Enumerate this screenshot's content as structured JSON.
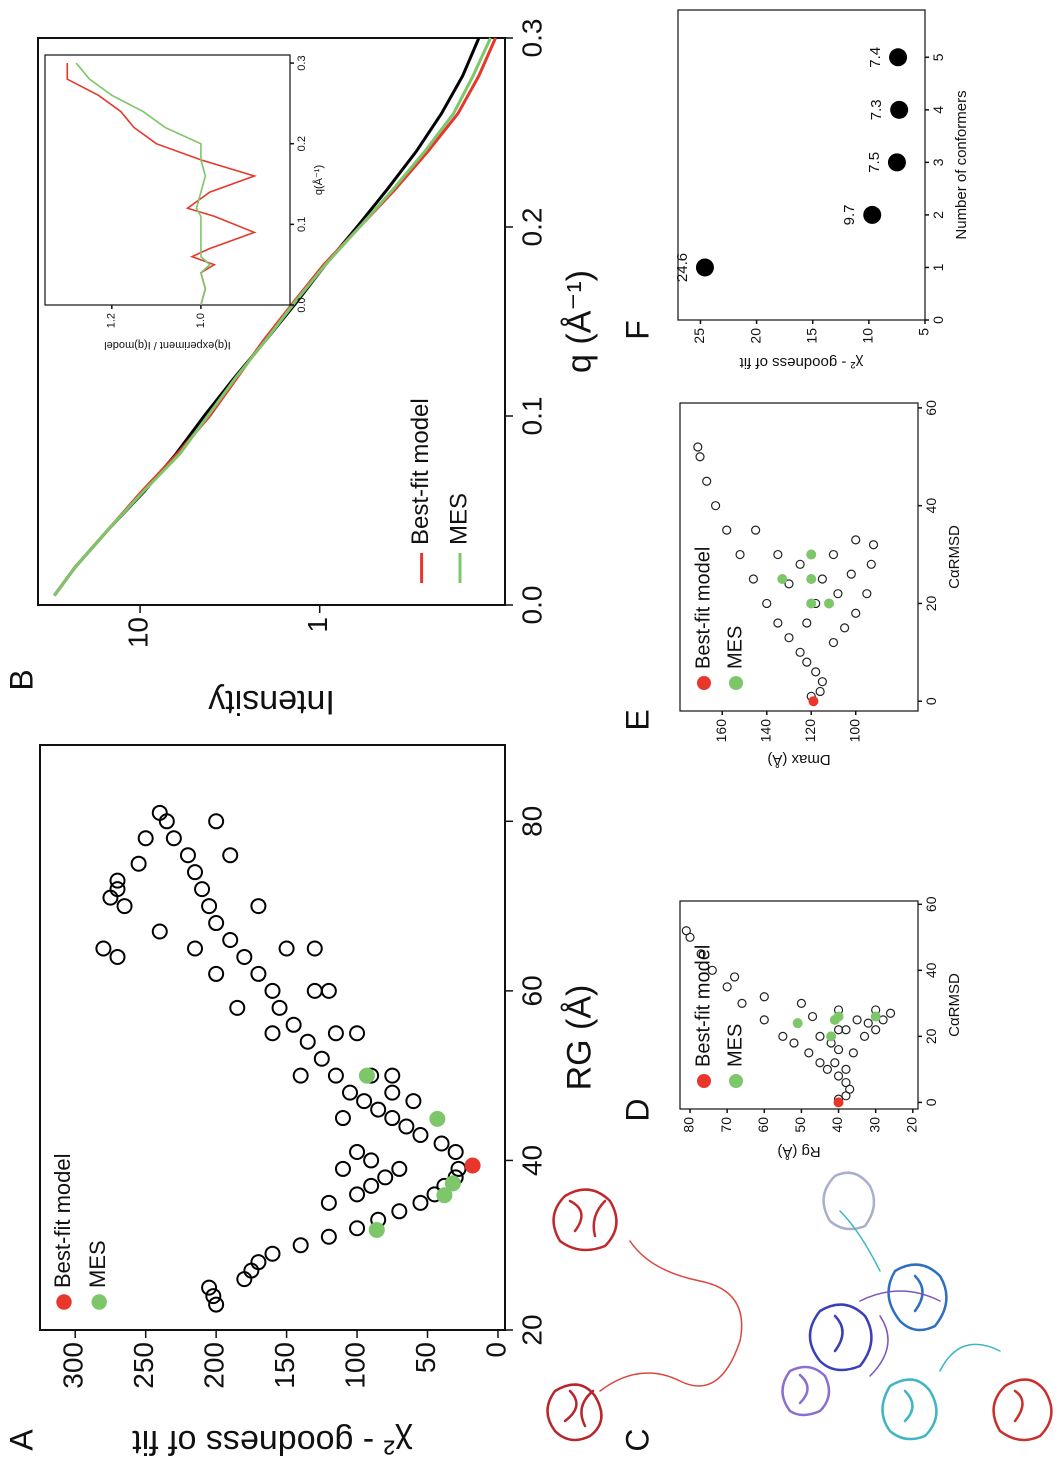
{
  "panel_labels": [
    "A",
    "B",
    "C",
    "D",
    "E",
    "F"
  ],
  "chart_data": [
    {
      "type": "scatter",
      "xlabel": "RG (Å)",
      "ylabel": "χ² - goodness of fit",
      "xlim": [
        20,
        89
      ],
      "ylim": [
        -5,
        325
      ],
      "xticks": [
        20,
        40,
        60,
        80
      ],
      "yticks": [
        0,
        50,
        100,
        150,
        200,
        250,
        300
      ],
      "legend": "upper left",
      "series": [
        {
          "color": "#000000",
          "marker": "open",
          "x": [
            23,
            24,
            25,
            26,
            27,
            28,
            29,
            30,
            31,
            32,
            33,
            34,
            35,
            36,
            37,
            38,
            39,
            41,
            42,
            43,
            44,
            45,
            46,
            47,
            48,
            50,
            52,
            54,
            56,
            58,
            60,
            62,
            64,
            66,
            68,
            70,
            72,
            74,
            76,
            78,
            80,
            81,
            45,
            50,
            55,
            58,
            62,
            65,
            67,
            70,
            72,
            75,
            78,
            80,
            76,
            70,
            65,
            60,
            55,
            50,
            48,
            47,
            50,
            55,
            60,
            65,
            36,
            37,
            38,
            39,
            40,
            41,
            39,
            35,
            64,
            65,
            71,
            73
          ],
          "values": [
            200,
            202,
            205,
            180,
            175,
            170,
            160,
            140,
            120,
            100,
            85,
            70,
            55,
            45,
            38,
            30,
            28,
            30,
            40,
            55,
            65,
            75,
            85,
            95,
            105,
            115,
            125,
            135,
            145,
            155,
            160,
            170,
            180,
            190,
            200,
            205,
            210,
            215,
            220,
            230,
            235,
            240,
            110,
            140,
            160,
            185,
            200,
            215,
            240,
            265,
            270,
            255,
            250,
            200,
            190,
            170,
            150,
            130,
            115,
            90,
            75,
            60,
            75,
            100,
            120,
            130,
            100,
            90,
            80,
            70,
            90,
            100,
            110,
            120,
            270,
            280,
            275,
            270
          ]
        },
        {
          "name": "Best-fit model",
          "color": "#e8362a",
          "marker": "filled",
          "x": [
            39.4
          ],
          "values": [
            18
          ]
        },
        {
          "name": "MES",
          "color": "#7dc66a",
          "marker": "filled",
          "x": [
            31.8,
            35.9,
            37.3,
            44.9,
            50
          ],
          "values": [
            86,
            38,
            32,
            43,
            93
          ]
        }
      ]
    },
    {
      "type": "line",
      "xlabel": "q (Å⁻¹)",
      "ylabel": "Intensity",
      "ylog": true,
      "xlim": [
        0,
        0.3
      ],
      "ylim": [
        0.093,
        37
      ],
      "xticks": [
        {
          "value": 0,
          "label": "0.0"
        },
        0.1,
        0.2,
        0.3
      ],
      "yticks": [
        1,
        10
      ],
      "legend": "lower left",
      "series": [
        {
          "color": "#000000",
          "x": [
            0.005,
            0.02,
            0.04,
            0.06,
            0.08,
            0.1,
            0.12,
            0.14,
            0.16,
            0.18,
            0.2,
            0.22,
            0.24,
            0.26,
            0.28,
            0.3
          ],
          "values": [
            30,
            23,
            15,
            9.5,
            6.3,
            4.4,
            3.0,
            2.0,
            1.35,
            0.93,
            0.62,
            0.42,
            0.29,
            0.21,
            0.16,
            0.13
          ]
        },
        {
          "name": "Best-fit model",
          "color": "#e8362a",
          "x": [
            0.005,
            0.02,
            0.04,
            0.06,
            0.08,
            0.1,
            0.12,
            0.14,
            0.16,
            0.18,
            0.2,
            0.22,
            0.24,
            0.26,
            0.28,
            0.3
          ],
          "values": [
            30,
            23,
            15,
            9.8,
            6.2,
            4.1,
            2.9,
            2.05,
            1.4,
            0.95,
            0.6,
            0.38,
            0.25,
            0.17,
            0.13,
            0.105
          ]
        },
        {
          "name": "MES",
          "color": "#7dc66a",
          "x": [
            0.005,
            0.02,
            0.04,
            0.06,
            0.08,
            0.1,
            0.12,
            0.14,
            0.16,
            0.18,
            0.2,
            0.22,
            0.24,
            0.26,
            0.28,
            0.3
          ],
          "values": [
            30,
            23,
            15,
            9.6,
            6.0,
            4.2,
            2.95,
            2.0,
            1.38,
            0.93,
            0.6,
            0.39,
            0.26,
            0.18,
            0.14,
            0.112
          ]
        }
      ]
    },
    {
      "type": "line",
      "xlabel": "q(Å⁻¹)",
      "ylabel": "I(q)experiment / I(q)model",
      "xlim": [
        0,
        0.31
      ],
      "ylim": [
        0.8,
        1.35
      ],
      "xticks": [
        {
          "value": 0,
          "label": "0.0"
        },
        0.1,
        0.2,
        0.3
      ],
      "yticks": [
        {
          "value": 1,
          "label": "1.0"
        },
        1.2
      ],
      "series": [
        {
          "color": "#e8362a",
          "x": [
            0,
            0.02,
            0.04,
            0.05,
            0.06,
            0.07,
            0.09,
            0.11,
            0.12,
            0.14,
            0.16,
            0.18,
            0.2,
            0.22,
            0.24,
            0.26,
            0.28,
            0.3
          ],
          "values": [
            1.0,
            0.99,
            1.0,
            0.97,
            1.02,
            0.98,
            0.88,
            0.97,
            1.03,
            0.98,
            0.88,
            1.0,
            1.1,
            1.15,
            1.18,
            1.23,
            1.3,
            1.3
          ]
        },
        {
          "color": "#7dc66a",
          "x": [
            0,
            0.02,
            0.04,
            0.05,
            0.06,
            0.07,
            0.09,
            0.11,
            0.12,
            0.14,
            0.16,
            0.18,
            0.2,
            0.22,
            0.24,
            0.26,
            0.28,
            0.3
          ],
          "values": [
            1.0,
            0.99,
            1.0,
            0.98,
            1.0,
            1.0,
            1.0,
            1.0,
            1.01,
            1.0,
            0.99,
            1.0,
            1.0,
            1.08,
            1.13,
            1.2,
            1.25,
            1.28
          ]
        }
      ]
    },
    {
      "type": "scatter",
      "xlabel": "CαRMSD",
      "ylabel": "Rg (Å)",
      "xlim": [
        -2,
        61
      ],
      "ylim": [
        18.6,
        82.7
      ],
      "xticks": [
        0,
        20,
        40,
        60
      ],
      "yticks": [
        20,
        30,
        40,
        50,
        60,
        70,
        80
      ],
      "legend": "upper left",
      "series": [
        {
          "color": "#222222",
          "marker": "open",
          "x": [
            1,
            2,
            4,
            6,
            8,
            10,
            12,
            15,
            18,
            20,
            25,
            30,
            35,
            40,
            45,
            50,
            52,
            10,
            15,
            20,
            22,
            25,
            27,
            28,
            25,
            22,
            18,
            28,
            30,
            26,
            32,
            38,
            22,
            24,
            20,
            16,
            12
          ],
          "values": [
            40,
            38,
            37,
            38,
            40,
            43,
            45,
            48,
            52,
            55,
            60,
            66,
            70,
            74,
            77,
            80,
            81,
            38,
            36,
            33,
            30,
            28,
            26,
            30,
            35,
            40,
            42,
            40,
            50,
            47,
            60,
            68,
            38,
            32,
            45,
            40,
            41
          ]
        },
        {
          "name": "Best-fit model",
          "color": "#e8362a",
          "marker": "filled",
          "x": [
            0
          ],
          "values": [
            40
          ]
        },
        {
          "name": "MES",
          "color": "#7dc66a",
          "marker": "filled",
          "x": [
            24,
            20,
            25,
            26,
            26
          ],
          "values": [
            51,
            42,
            41,
            40,
            30
          ]
        }
      ]
    },
    {
      "type": "scatter",
      "xlabel": "CαRMSD",
      "ylabel": "Dmax (Å)",
      "xlim": [
        -2,
        61
      ],
      "ylim": [
        72,
        179
      ],
      "xticks": [
        0,
        20,
        40,
        60
      ],
      "yticks": [
        100,
        120,
        140,
        160
      ],
      "legend": "upper left",
      "series": [
        {
          "color": "#222222",
          "marker": "open",
          "x": [
            1,
            2,
            4,
            6,
            8,
            10,
            13,
            16,
            20,
            25,
            30,
            35,
            40,
            45,
            50,
            52,
            12,
            15,
            18,
            22,
            28,
            32,
            33,
            30,
            25,
            20,
            28,
            24,
            30,
            35,
            16,
            22,
            26
          ],
          "values": [
            120,
            116,
            115,
            118,
            122,
            125,
            130,
            135,
            140,
            146,
            152,
            158,
            163,
            167,
            170,
            171,
            110,
            105,
            100,
            95,
            93,
            92,
            100,
            110,
            115,
            118,
            125,
            130,
            135,
            145,
            122,
            108,
            102
          ]
        },
        {
          "name": "Best-fit model",
          "color": "#e8362a",
          "marker": "filled",
          "x": [
            0
          ],
          "values": [
            119
          ]
        },
        {
          "name": "MES",
          "color": "#7dc66a",
          "marker": "filled",
          "x": [
            25,
            20,
            25,
            30,
            20
          ],
          "values": [
            133,
            120,
            120,
            120,
            112
          ]
        }
      ]
    },
    {
      "type": "scatter",
      "xlabel": "Number of conformers",
      "ylabel": "χ² - goodness of fit",
      "xlim": [
        0,
        5.9
      ],
      "ylim": [
        5,
        27
      ],
      "xticks": [
        0,
        1,
        2,
        3,
        4,
        5
      ],
      "yticks": [
        5,
        10,
        15,
        20,
        25
      ],
      "data_labels": true,
      "series": [
        {
          "color": "#000000",
          "marker": "filled",
          "x": [
            1,
            2,
            3,
            4,
            5
          ],
          "values": [
            24.6,
            9.7,
            7.5,
            7.3,
            7.4
          ]
        }
      ]
    }
  ]
}
